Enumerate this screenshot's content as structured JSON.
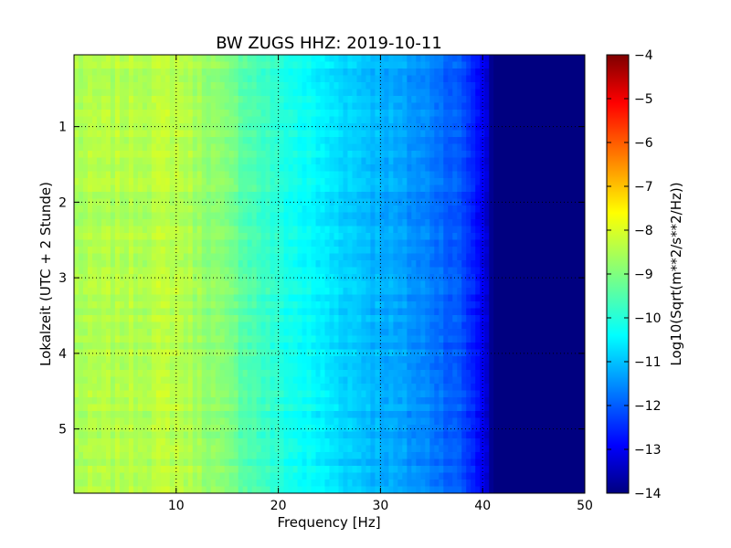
{
  "chart_data": {
    "type": "heatmap",
    "title": "BW ZUGS HHZ: 2019-10-11",
    "xlabel": "Frequency [Hz]",
    "ylabel": "Lokalzeit (UTC + 2 Stunde)",
    "xlim": [
      0,
      50
    ],
    "ylim": [
      5.85,
      0.05
    ],
    "x_ticks": [
      10,
      20,
      30,
      40,
      50
    ],
    "y_ticks": [
      1,
      2,
      3,
      4,
      5
    ],
    "grid": true,
    "colormap": "jet",
    "colorbar": {
      "label": "Log10(Sqrt(m**2/s**2/Hz))",
      "range": [
        -14,
        -4
      ],
      "ticks": [
        -4,
        -5,
        -6,
        -7,
        -8,
        -9,
        -10,
        -11,
        -12,
        -13,
        -14
      ]
    },
    "frequency_hz": [
      0,
      5,
      10,
      14,
      20,
      25,
      30,
      35,
      38,
      40,
      41,
      50
    ],
    "median_log_psd": [
      -8.6,
      -8.5,
      -8.4,
      -8.9,
      -9.9,
      -10.5,
      -11.0,
      -11.5,
      -12.0,
      -12.8,
      -14.0,
      -14.0
    ]
  }
}
